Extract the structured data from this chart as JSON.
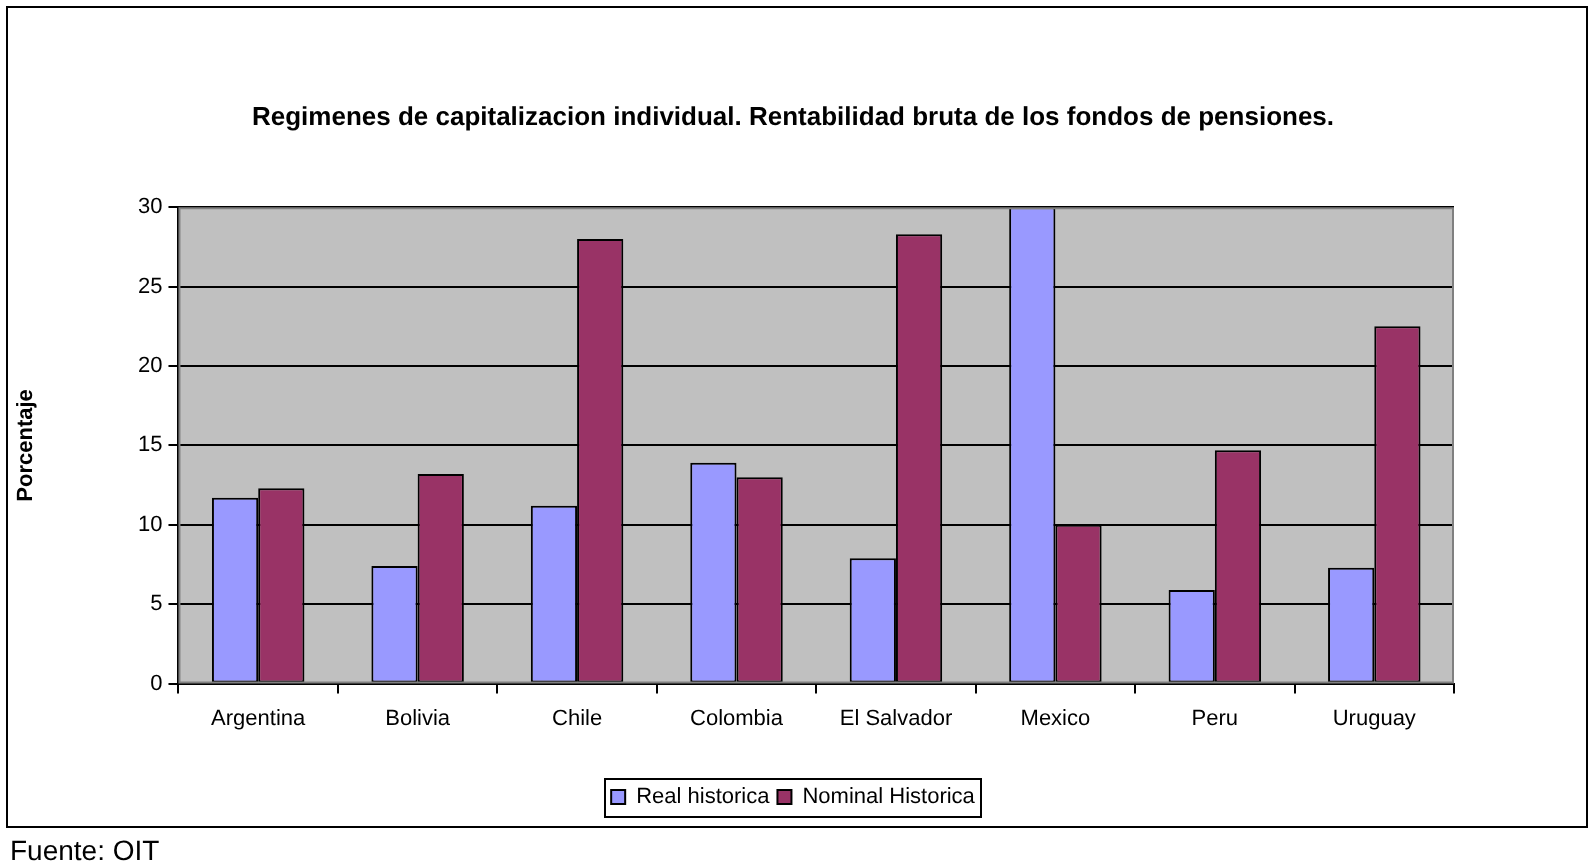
{
  "chart_data": {
    "type": "bar",
    "title": "Regimenes de capitalizacion individual. Rentabilidad bruta de los fondos de pensiones.",
    "ylabel": "Porcentaje",
    "categories": [
      "Argentina",
      "Bolivia",
      "Chile",
      "Colombia",
      "El Salvador",
      "Mexico",
      "Peru",
      "Uruguay"
    ],
    "series": [
      {
        "name": "Real historica",
        "color": "#9999ff",
        "values": [
          11.7,
          7.4,
          11.2,
          13.9,
          7.9,
          30.0,
          5.9,
          7.3
        ]
      },
      {
        "name": "Nominal Historica",
        "color": "#993366",
        "values": [
          12.3,
          13.2,
          28.0,
          13.0,
          28.3,
          10.0,
          14.7,
          22.5
        ]
      }
    ],
    "ylim": [
      0,
      30
    ],
    "yticks": [
      0,
      5,
      10,
      15,
      20,
      25,
      30
    ],
    "grid": "y",
    "legend": "bottom",
    "annotations": [
      "Fuente: OIT"
    ]
  }
}
